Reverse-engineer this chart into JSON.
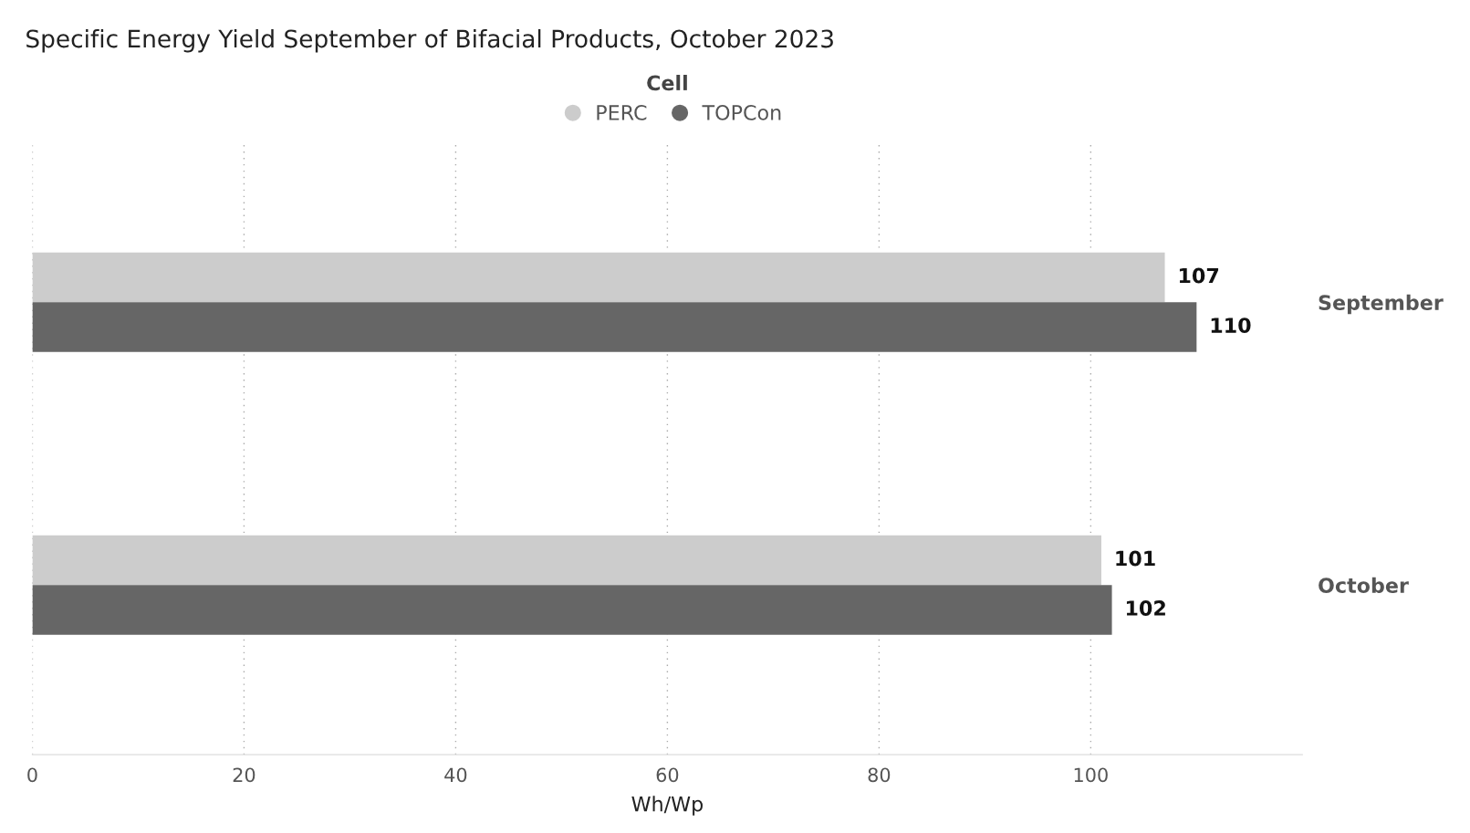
{
  "chart_data": {
    "type": "bar",
    "orientation": "horizontal",
    "title": "Specific Energy Yield September of Bifacial Products, October 2023",
    "xlabel": "Wh/Wp",
    "legend_title": "Cell",
    "legend": "top",
    "categories": [
      "September",
      "October"
    ],
    "series": [
      {
        "name": "PERC",
        "color": "#cccccc",
        "values": [
          107,
          101
        ]
      },
      {
        "name": "TOPCon",
        "color": "#666666",
        "values": [
          110,
          102
        ]
      }
    ],
    "xlim": [
      0,
      120
    ],
    "xticks": [
      0,
      20,
      40,
      60,
      80,
      100
    ],
    "grid": "x",
    "data_labels": true
  }
}
